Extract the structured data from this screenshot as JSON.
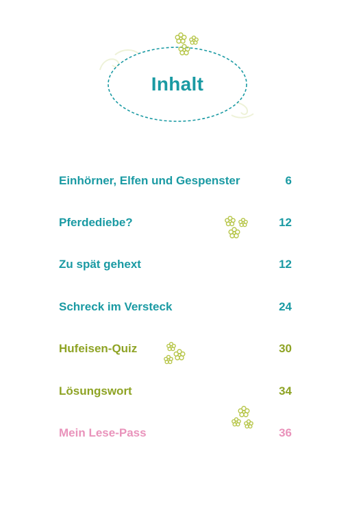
{
  "title": "Inhalt",
  "colors": {
    "teal": "#1a9aa3",
    "olive": "#8ea324",
    "pink": "#e993bb",
    "flower": "#b7c64a"
  },
  "entries": [
    {
      "label": "Einhörner, Elfen und Gespenster",
      "page": "6",
      "color": "teal"
    },
    {
      "label": "Pferdediebe?",
      "page": "12",
      "color": "teal"
    },
    {
      "label": "Zu spät gehext",
      "page": "12",
      "color": "teal"
    },
    {
      "label": "Schreck im Versteck",
      "page": "24",
      "color": "teal"
    },
    {
      "label": "Hufeisen-Quiz",
      "page": "30",
      "color": "olive"
    },
    {
      "label": "Lösungswort",
      "page": "34",
      "color": "olive"
    },
    {
      "label": "Mein Lese-Pass",
      "page": "36",
      "color": "pink"
    }
  ],
  "decorations": [
    "flower-cluster-icon",
    "flower-cluster-icon",
    "flower-cluster-icon",
    "flower-cluster-icon",
    "swirl-icon"
  ]
}
